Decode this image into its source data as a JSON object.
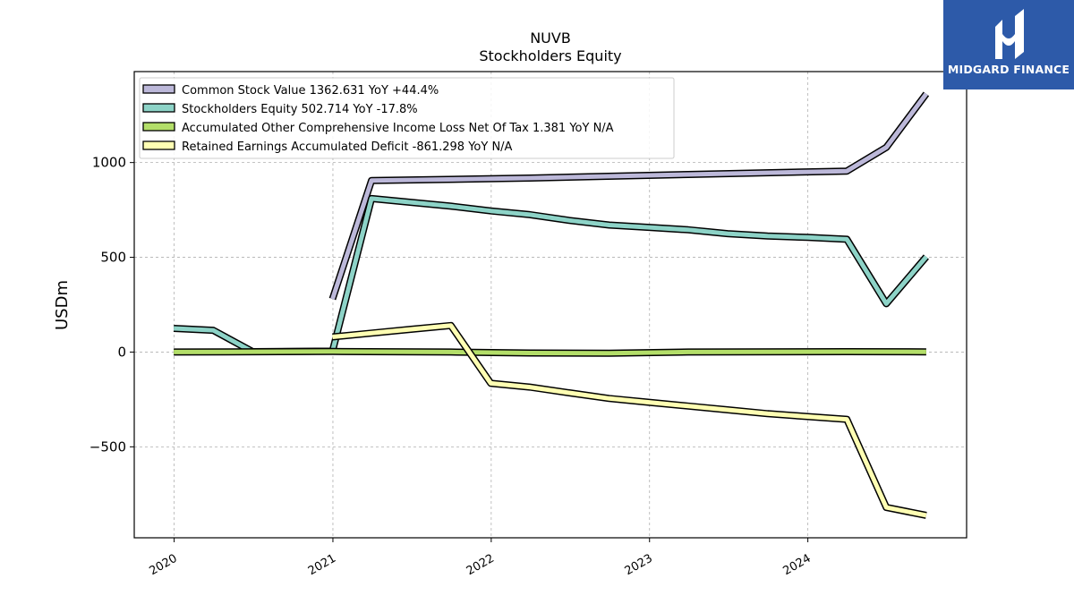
{
  "brand": {
    "name": "MIDGARD FINANCE",
    "logo_icon": "midgard-logo-icon",
    "color": "#2d5aa9"
  },
  "chart_data": {
    "type": "line",
    "title": "NUVB",
    "subtitle": "Stockholders  Equity",
    "xlabel": "",
    "ylabel": "USDm",
    "xlim": [
      "2019-10-01",
      "2025-01-01"
    ],
    "ylim": [
      -980,
      1480
    ],
    "x_ticks": [
      "2020",
      "2021",
      "2022",
      "2023",
      "2024"
    ],
    "y_ticks": [
      -500,
      0,
      500,
      1000
    ],
    "y_tick_labels": [
      "−500",
      "0",
      "500",
      "1000"
    ],
    "grid": true,
    "legend_position": "top-left",
    "series": [
      {
        "name": "Common Stock Value  1362.631 YoY +44.4%",
        "color": "#bcb8d9",
        "points": [
          [
            "2020-12-31",
            280
          ],
          [
            "2021-03-31",
            905
          ],
          [
            "2022-03-31",
            918
          ],
          [
            "2023-03-31",
            937
          ],
          [
            "2024-03-31",
            955
          ],
          [
            "2024-06-30",
            1080
          ],
          [
            "2024-09-30",
            1362.631
          ]
        ]
      },
      {
        "name": "Stockholders Equity  502.714 YoY -17.8%",
        "color": "#8dd3c7",
        "points": [
          [
            "2019-12-31",
            125
          ],
          [
            "2020-03-31",
            115
          ],
          [
            "2020-06-30",
            2
          ],
          [
            "2020-12-31",
            5
          ],
          [
            "2021-03-31",
            810
          ],
          [
            "2021-06-30",
            790
          ],
          [
            "2021-09-30",
            770
          ],
          [
            "2021-12-31",
            745
          ],
          [
            "2022-03-31",
            725
          ],
          [
            "2022-06-30",
            695
          ],
          [
            "2022-09-30",
            670
          ],
          [
            "2022-12-31",
            658
          ],
          [
            "2023-03-31",
            645
          ],
          [
            "2023-06-30",
            625
          ],
          [
            "2023-09-30",
            612
          ],
          [
            "2023-12-31",
            605
          ],
          [
            "2024-03-31",
            595
          ],
          [
            "2024-06-30",
            255
          ],
          [
            "2024-09-30",
            502.714
          ]
        ]
      },
      {
        "name": "Accumulated Other Comprehensive Income Loss Net Of Tax  1.381 YoY N/A",
        "color": "#b3de69",
        "points": [
          [
            "2019-12-31",
            0
          ],
          [
            "2020-12-31",
            3
          ],
          [
            "2021-09-30",
            0
          ],
          [
            "2022-03-31",
            -5
          ],
          [
            "2022-09-30",
            -6
          ],
          [
            "2023-03-31",
            0
          ],
          [
            "2024-03-31",
            2
          ],
          [
            "2024-09-30",
            1.381
          ]
        ]
      },
      {
        "name": "Retained Earnings Accumulated Deficit  -861.298 YoY N/A",
        "color": "#ffffb3",
        "points": [
          [
            "2020-12-31",
            80
          ],
          [
            "2021-03-31",
            100
          ],
          [
            "2021-06-30",
            120
          ],
          [
            "2021-09-30",
            140
          ],
          [
            "2021-12-31",
            -165
          ],
          [
            "2022-03-31",
            -185
          ],
          [
            "2022-06-30",
            -215
          ],
          [
            "2022-09-30",
            -245
          ],
          [
            "2022-12-31",
            -265
          ],
          [
            "2023-03-31",
            -285
          ],
          [
            "2023-06-30",
            -305
          ],
          [
            "2023-09-30",
            -325
          ],
          [
            "2023-12-31",
            -340
          ],
          [
            "2024-03-31",
            -355
          ],
          [
            "2024-06-30",
            -820
          ],
          [
            "2024-09-30",
            -861.298
          ]
        ]
      }
    ]
  }
}
